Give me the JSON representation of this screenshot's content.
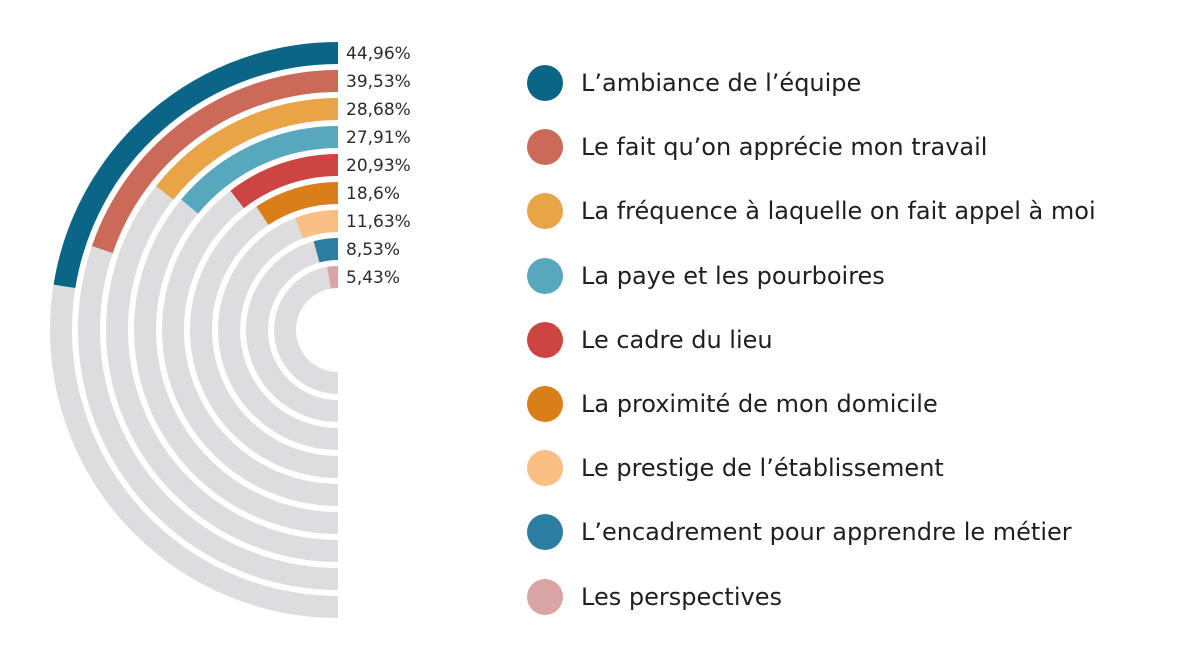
{
  "chart_data": {
    "type": "radial-bar",
    "track_color": "#dddddf",
    "series": [
      {
        "name": "L’ambiance de l’équipe",
        "value": 44.96,
        "label": "44,96%",
        "color": "#0b6586"
      },
      {
        "name": "Le fait qu’on apprécie mon travail",
        "value": 39.53,
        "label": "39,53%",
        "color": "#cb6a58"
      },
      {
        "name": "La fréquence à laquelle on fait appel à moi",
        "value": 28.68,
        "label": "28,68%",
        "color": "#e9a447"
      },
      {
        "name": "La paye et les pourboires",
        "value": 27.91,
        "label": "27,91%",
        "color": "#57a7bd"
      },
      {
        "name": "Le cadre du lieu",
        "value": 20.93,
        "label": "20,93%",
        "color": "#cd4542"
      },
      {
        "name": "La proximité de mon domicile",
        "value": 18.6,
        "label": "18,6%",
        "color": "#da7e1a"
      },
      {
        "name": "Le prestige de l’établissement",
        "value": 11.63,
        "label": "11,63%",
        "color": "#fbbe85"
      },
      {
        "name": "L’encadrement pour apprendre le métier",
        "value": 8.53,
        "label": "8,53%",
        "color": "#2c7ea1"
      },
      {
        "name": "Les perspectives",
        "value": 5.43,
        "label": "5,43%",
        "color": "#d9a4a4"
      }
    ]
  }
}
